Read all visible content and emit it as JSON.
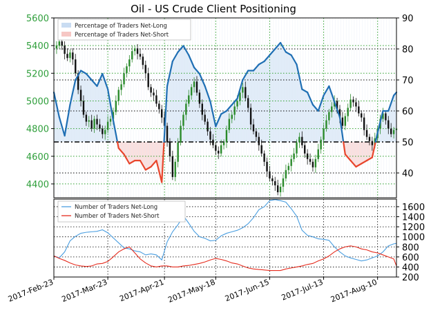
{
  "chart_data": [
    {
      "type": "line",
      "title": "Oil - US Crude Client Positioning",
      "colors": {
        "net_long_line": "#1f6fb4",
        "net_short_line": "#e8452c",
        "long_fill": "#c9dcf2",
        "short_fill": "#f6c7c4",
        "price_up": "#2a8a2a",
        "price_down": "#111111",
        "left_axis": "#2e9e3a",
        "grid_green": "#2ea02c",
        "grid_black": "#000000"
      },
      "legend": [
        {
          "label": "Percentage of Traders Net-Long",
          "color": "#c9dcf2"
        },
        {
          "label": "Percentage of Traders Net-Short",
          "color": "#f6c7c4"
        }
      ],
      "legend_position": "top-left",
      "grid": true,
      "left_axis": {
        "ticks": [
          4400,
          4600,
          4800,
          5000,
          5200,
          5400,
          5600
        ],
        "ylim": [
          4300,
          5600
        ]
      },
      "right_axis": {
        "ticks": [
          40,
          50,
          60,
          70,
          80,
          90
        ],
        "ylim": [
          32,
          90
        ]
      },
      "threshold_value": 50,
      "x_ticks": [
        "2017-Feb-23",
        "2017-Mar-23",
        "2017-Apr-21",
        "2017-May-18",
        "2017-Jun-15",
        "2017-Jul-13",
        "2017-Aug-10"
      ],
      "xlim": [
        0,
        127
      ],
      "price_series": {
        "name": "US Crude",
        "x": [
          0,
          1,
          2,
          3,
          4,
          5,
          6,
          7,
          8,
          9,
          10,
          11,
          12,
          13,
          14,
          15,
          16,
          17,
          18,
          19,
          20,
          21,
          22,
          23,
          24,
          25,
          26,
          27,
          28,
          29,
          30,
          31,
          32,
          33,
          34,
          35,
          36,
          37,
          38,
          39,
          40,
          41,
          42,
          43,
          44,
          45,
          46,
          47,
          48,
          49,
          50,
          51,
          52,
          53,
          54,
          55,
          56,
          57,
          58,
          59,
          60,
          61,
          62,
          63,
          64,
          65,
          66,
          67,
          68,
          69,
          70,
          71,
          72,
          73,
          74,
          75,
          76,
          77,
          78,
          79,
          80,
          81,
          82,
          83,
          84,
          85,
          86,
          87,
          88,
          89,
          90,
          91,
          92,
          93,
          94,
          95,
          96,
          97,
          98,
          99,
          100,
          101,
          102,
          103,
          104,
          105,
          106,
          107,
          108,
          109,
          110,
          111,
          112,
          113,
          114,
          115,
          116,
          117,
          118,
          119,
          120,
          121,
          122,
          123,
          124,
          125,
          126,
          127
        ],
        "close": [
          5380,
          5400,
          5430,
          5400,
          5340,
          5310,
          5350,
          5300,
          5200,
          5080,
          5000,
          4900,
          4850,
          4860,
          4800,
          4870,
          4830,
          4800,
          4760,
          4790,
          4850,
          4870,
          4920,
          5000,
          5080,
          5120,
          5200,
          5250,
          5300,
          5360,
          5380,
          5340,
          5320,
          5260,
          5200,
          5100,
          5060,
          5040,
          4980,
          4940,
          4880,
          4820,
          4700,
          4600,
          4450,
          4560,
          4700,
          4820,
          4900,
          4980,
          5040,
          5100,
          5140,
          5060,
          4980,
          4900,
          4850,
          4780,
          4720,
          4680,
          4640,
          4620,
          4680,
          4700,
          4790,
          4870,
          4900,
          4960,
          5000,
          5060,
          5100,
          5020,
          4950,
          4830,
          4780,
          4740,
          4680,
          4620,
          4560,
          4490,
          4440,
          4420,
          4390,
          4340,
          4380,
          4440,
          4500,
          4530,
          4580,
          4620,
          4700,
          4740,
          4680,
          4620,
          4580,
          4560,
          4520,
          4580,
          4650,
          4720,
          4800,
          4860,
          4920,
          4960,
          5000,
          4940,
          4880,
          4820,
          4890,
          4950,
          5010,
          4990,
          4960,
          4910,
          4880,
          4790,
          4740,
          4710,
          4680,
          4730,
          4800,
          4870,
          4910,
          4860,
          4800,
          4760,
          4790,
          4800
        ]
      },
      "positioning_series": [
        {
          "name": "Percentage of Traders Net-Long",
          "x": [
            0,
            2,
            4,
            6,
            8,
            10,
            12,
            14,
            16,
            18,
            20,
            22,
            24,
            26,
            28,
            30,
            32,
            34,
            36,
            38,
            40,
            42,
            44,
            46,
            48,
            50,
            52,
            54,
            56,
            58,
            60,
            62,
            64,
            66,
            68,
            70,
            72,
            74,
            76,
            78,
            80,
            82,
            84,
            86,
            88,
            90,
            92,
            94,
            96,
            98,
            100,
            102,
            104,
            106,
            108,
            110,
            112,
            114,
            116,
            118,
            120,
            122,
            124,
            126,
            127
          ],
          "values": [
            66,
            58,
            52,
            62,
            70,
            73,
            72,
            70,
            68,
            72,
            67,
            57,
            48,
            46,
            43,
            44,
            44,
            41,
            42,
            44,
            37,
            68,
            76,
            79,
            81,
            78,
            74,
            72,
            68,
            63,
            55,
            59,
            60,
            62,
            64,
            70,
            73,
            73,
            75,
            76,
            78,
            80,
            82,
            79,
            78,
            75,
            67,
            66,
            62,
            60,
            65,
            68,
            63,
            58,
            46,
            44,
            42,
            43,
            44,
            45,
            53,
            60,
            60,
            65,
            66
          ]
        }
      ],
      "axis_crossing": 50
    },
    {
      "type": "line",
      "legend": [
        {
          "label": "Number of Traders Net-Long",
          "color": "#4a9ee0"
        },
        {
          "label": "Number of Traders Net-Short",
          "color": "#e52a1c"
        }
      ],
      "legend_position": "top-left",
      "grid": true,
      "right_axis": {
        "ticks": [
          200,
          400,
          600,
          800,
          1000,
          1200,
          1400,
          1600
        ],
        "ylim": [
          200,
          1750
        ]
      },
      "xlim": [
        0,
        127
      ],
      "series": [
        {
          "name": "Number of Traders Net-Long",
          "color": "#4a9ee0",
          "x": [
            0,
            2,
            4,
            6,
            8,
            10,
            12,
            14,
            16,
            18,
            20,
            22,
            24,
            26,
            28,
            30,
            32,
            34,
            36,
            38,
            40,
            42,
            44,
            46,
            48,
            50,
            52,
            54,
            56,
            58,
            60,
            62,
            64,
            66,
            68,
            70,
            72,
            74,
            76,
            78,
            80,
            82,
            84,
            86,
            88,
            90,
            92,
            94,
            96,
            98,
            100,
            102,
            104,
            106,
            108,
            110,
            112,
            114,
            116,
            118,
            120,
            122,
            124,
            126,
            127
          ],
          "values": [
            620,
            580,
            700,
            920,
            1010,
            1070,
            1090,
            1100,
            1110,
            1140,
            1080,
            980,
            880,
            780,
            760,
            720,
            700,
            640,
            660,
            640,
            540,
            900,
            1100,
            1240,
            1420,
            1270,
            1110,
            1000,
            970,
            920,
            930,
            1020,
            1070,
            1100,
            1130,
            1180,
            1260,
            1380,
            1540,
            1600,
            1720,
            1740,
            1720,
            1690,
            1560,
            1410,
            1130,
            1030,
            1000,
            960,
            950,
            930,
            800,
            700,
            620,
            580,
            550,
            520,
            540,
            580,
            620,
            700,
            820,
            860,
            870
          ]
        },
        {
          "name": "Number of Traders Net-Short",
          "color": "#e52a1c",
          "x": [
            0,
            2,
            4,
            6,
            8,
            10,
            12,
            14,
            16,
            18,
            20,
            22,
            24,
            26,
            28,
            30,
            32,
            34,
            36,
            38,
            40,
            42,
            44,
            46,
            48,
            50,
            52,
            54,
            56,
            58,
            60,
            62,
            64,
            66,
            68,
            70,
            72,
            74,
            76,
            78,
            80,
            82,
            84,
            86,
            88,
            90,
            92,
            94,
            96,
            98,
            100,
            102,
            104,
            106,
            108,
            110,
            112,
            114,
            116,
            118,
            120,
            122,
            124,
            126,
            127
          ],
          "values": [
            620,
            570,
            530,
            480,
            440,
            420,
            410,
            420,
            460,
            470,
            510,
            600,
            700,
            760,
            800,
            680,
            560,
            480,
            420,
            400,
            420,
            420,
            400,
            400,
            420,
            430,
            450,
            470,
            500,
            540,
            570,
            550,
            520,
            480,
            460,
            420,
            380,
            360,
            350,
            340,
            330,
            330,
            330,
            360,
            380,
            400,
            420,
            450,
            470,
            520,
            560,
            620,
            700,
            760,
            800,
            820,
            800,
            760,
            740,
            700,
            680,
            640,
            600,
            560,
            420
          ]
        }
      ]
    }
  ]
}
